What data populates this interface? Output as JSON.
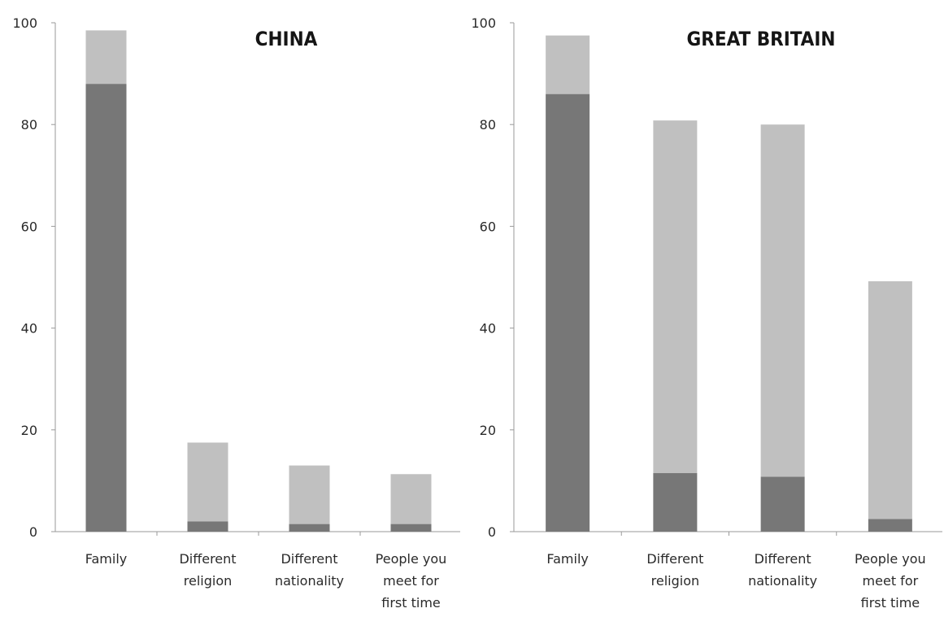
{
  "chart_data": [
    {
      "type": "bar",
      "stacked": true,
      "title": "CHINA",
      "categories": [
        [
          "Family"
        ],
        [
          "Different",
          "religion"
        ],
        [
          "Different",
          "nationality"
        ],
        [
          "People you",
          "meet for",
          "first time"
        ]
      ],
      "series": [
        {
          "values": [
            88,
            2,
            1.5,
            1.5
          ]
        },
        {
          "values": [
            10.5,
            15.5,
            11.5,
            9.8
          ]
        }
      ],
      "totals": [
        98.5,
        17.5,
        13,
        11.3
      ],
      "ylim": [
        0,
        100
      ],
      "yticks": [
        "0",
        "20",
        "40",
        "60",
        "80",
        "100"
      ],
      "xlabel": "",
      "ylabel": "",
      "grid": false,
      "legend": "none"
    },
    {
      "type": "bar",
      "stacked": true,
      "title": "GREAT BRITAIN",
      "categories": [
        [
          "Family"
        ],
        [
          "Different",
          "religion"
        ],
        [
          "Different",
          "nationality"
        ],
        [
          "People you",
          "meet for",
          "first time"
        ]
      ],
      "series": [
        {
          "values": [
            86,
            11.5,
            10.8,
            2.5
          ]
        },
        {
          "values": [
            11.5,
            69.3,
            69.2,
            46.7
          ]
        }
      ],
      "totals": [
        97.5,
        80.8,
        80,
        49.2
      ],
      "ylim": [
        0,
        100
      ],
      "yticks": [
        "0",
        "20",
        "40",
        "60",
        "80",
        "100"
      ],
      "xlabel": "",
      "ylabel": "",
      "grid": false,
      "legend": "none"
    }
  ],
  "colors": {
    "series": [
      "#777777",
      "#c0c0c0"
    ],
    "axis": "#9a9a9a",
    "text": "#2a2a2a"
  }
}
